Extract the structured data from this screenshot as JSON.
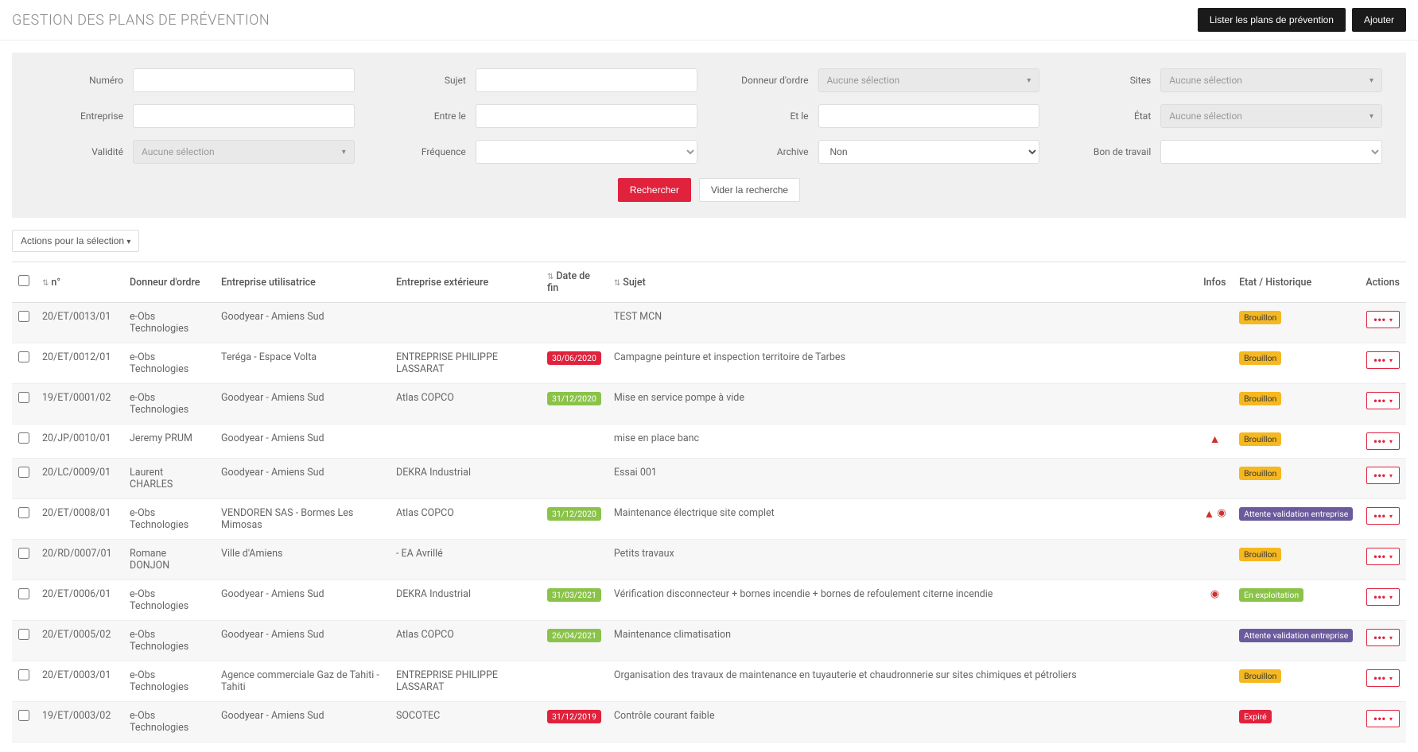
{
  "header": {
    "title": "GESTION DES PLANS DE PRÉVENTION",
    "btn_list": "Lister les plans de prévention",
    "btn_add": "Ajouter"
  },
  "filters": {
    "numero": {
      "label": "Numéro",
      "value": ""
    },
    "sujet": {
      "label": "Sujet",
      "value": ""
    },
    "donneur": {
      "label": "Donneur d'ordre",
      "placeholder": "Aucune sélection"
    },
    "sites": {
      "label": "Sites",
      "placeholder": "Aucune sélection"
    },
    "entreprise": {
      "label": "Entreprise",
      "value": ""
    },
    "entre_le": {
      "label": "Entre le",
      "value": ""
    },
    "et_le": {
      "label": "Et le",
      "value": ""
    },
    "etat": {
      "label": "État",
      "placeholder": "Aucune sélection"
    },
    "validite": {
      "label": "Validité",
      "placeholder": "Aucune sélection"
    },
    "frequence": {
      "label": "Fréquence",
      "value": ""
    },
    "archive": {
      "label": "Archive",
      "value": "Non"
    },
    "bon_travail": {
      "label": "Bon de travail",
      "value": ""
    },
    "btn_search": "Rechercher",
    "btn_clear": "Vider la recherche"
  },
  "selection_btn": "Actions pour la sélection",
  "table": {
    "columns": {
      "num": "n°",
      "donneur": "Donneur d'ordre",
      "util": "Entreprise utilisatrice",
      "ext": "Entreprise extérieure",
      "date": "Date de fin",
      "sujet": "Sujet",
      "infos": "Infos",
      "etat": "Etat / Historique",
      "actions": "Actions"
    },
    "rows": [
      {
        "num": "20/ET/0013/01",
        "donneur": "e-Obs Technologies",
        "util": "Goodyear - Amiens Sud",
        "ext": "",
        "date": "",
        "date_color": "",
        "sujet": "TEST MCN",
        "warn": false,
        "clock": false,
        "etat": "Brouillon",
        "etat_color": "orange"
      },
      {
        "num": "20/ET/0012/01",
        "donneur": "e-Obs Technologies",
        "util": "Teréga - Espace Volta",
        "ext": "ENTREPRISE PHILIPPE LASSARAT",
        "date": "30/06/2020",
        "date_color": "red",
        "sujet": "Campagne peinture et inspection territoire de Tarbes",
        "warn": false,
        "clock": false,
        "etat": "Brouillon",
        "etat_color": "orange"
      },
      {
        "num": "19/ET/0001/02",
        "donneur": "e-Obs Technologies",
        "util": "Goodyear - Amiens Sud",
        "ext": "Atlas COPCO",
        "date": "31/12/2020",
        "date_color": "green",
        "sujet": "Mise en service pompe à vide",
        "warn": false,
        "clock": false,
        "etat": "Brouillon",
        "etat_color": "orange"
      },
      {
        "num": "20/JP/0010/01",
        "donneur": "Jeremy PRUM",
        "util": "Goodyear - Amiens Sud",
        "ext": "",
        "date": "",
        "date_color": "",
        "sujet": "mise en place banc",
        "warn": true,
        "clock": false,
        "etat": "Brouillon",
        "etat_color": "orange"
      },
      {
        "num": "20/LC/0009/01",
        "donneur": "Laurent CHARLES",
        "util": "Goodyear - Amiens Sud",
        "ext": "DEKRA Industrial",
        "date": "",
        "date_color": "",
        "sujet": "Essai 001",
        "warn": false,
        "clock": false,
        "etat": "Brouillon",
        "etat_color": "orange"
      },
      {
        "num": "20/ET/0008/01",
        "donneur": "e-Obs Technologies",
        "util": "VENDOREN SAS - Bormes Les Mimosas",
        "ext": "Atlas COPCO",
        "date": "31/12/2020",
        "date_color": "green",
        "sujet": "Maintenance électrique site complet",
        "warn": true,
        "clock": true,
        "etat": "Attente validation entreprise",
        "etat_color": "purple"
      },
      {
        "num": "20/RD/0007/01",
        "donneur": "Romane DONJON",
        "util": "Ville d'Amiens",
        "ext": "- EA Avrillé",
        "date": "",
        "date_color": "",
        "sujet": "Petits travaux",
        "warn": false,
        "clock": false,
        "etat": "Brouillon",
        "etat_color": "orange"
      },
      {
        "num": "20/ET/0006/01",
        "donneur": "e-Obs Technologies",
        "util": "Goodyear - Amiens Sud",
        "ext": "DEKRA Industrial",
        "date": "31/03/2021",
        "date_color": "green",
        "sujet": "Vérification disconnecteur + bornes incendie + bornes de refoulement citerne incendie",
        "warn": false,
        "clock": true,
        "etat": "En exploitation",
        "etat_color": "green"
      },
      {
        "num": "20/ET/0005/02",
        "donneur": "e-Obs Technologies",
        "util": "Goodyear - Amiens Sud",
        "ext": "Atlas COPCO",
        "date": "26/04/2021",
        "date_color": "green",
        "sujet": "Maintenance climatisation",
        "warn": false,
        "clock": false,
        "etat": "Attente validation entreprise",
        "etat_color": "purple"
      },
      {
        "num": "20/ET/0003/01",
        "donneur": "e-Obs Technologies",
        "util": "Agence commerciale Gaz de Tahiti - Tahiti",
        "ext": "ENTREPRISE PHILIPPE LASSARAT",
        "date": "",
        "date_color": "",
        "sujet": "Organisation des travaux de maintenance en tuyauterie et chaudronnerie sur sites chimiques et pétroliers",
        "warn": false,
        "clock": false,
        "etat": "Brouillon",
        "etat_color": "orange"
      },
      {
        "num": "19/ET/0003/02",
        "donneur": "e-Obs Technologies",
        "util": "Goodyear - Amiens Sud",
        "ext": "SOCOTEC",
        "date": "31/12/2019",
        "date_color": "red",
        "sujet": "Contrôle courant faible",
        "warn": false,
        "clock": false,
        "etat": "Expiré",
        "etat_color": "red"
      }
    ]
  }
}
